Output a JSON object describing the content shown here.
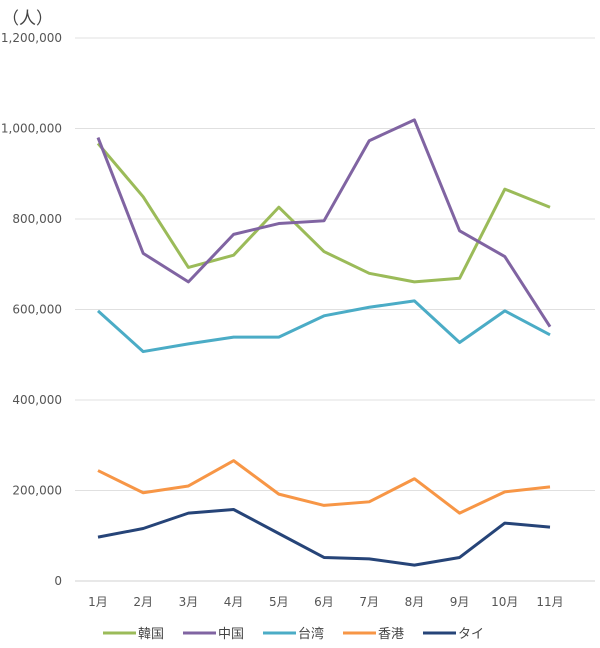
{
  "chart_data": {
    "type": "line",
    "unit_label": "（人）",
    "categories": [
      "1月",
      "2月",
      "3月",
      "4月",
      "5月",
      "6月",
      "7月",
      "8月",
      "9月",
      "10月",
      "11月"
    ],
    "ylim": [
      0,
      1200000
    ],
    "yticks": [
      0,
      200000,
      400000,
      600000,
      800000,
      1000000,
      1200000
    ],
    "ytick_labels": [
      "0",
      "200,000",
      "400,000",
      "600,000",
      "800,000",
      "1,000,000",
      "1,200,000"
    ],
    "grid": true,
    "legend_position": "bottom",
    "series": [
      {
        "name": "韓国",
        "color": "#9bbb59",
        "values": [
          967000,
          849000,
          693000,
          720000,
          826000,
          728000,
          680000,
          661000,
          669000,
          866000,
          826000
        ]
      },
      {
        "name": "中国",
        "color": "#8064a2",
        "values": [
          980000,
          724000,
          661000,
          766000,
          790000,
          796000,
          973000,
          1019000,
          774000,
          717000,
          562000
        ]
      },
      {
        "name": "台湾",
        "color": "#4bacc6",
        "values": [
          597000,
          507000,
          524000,
          539000,
          539000,
          586000,
          605000,
          619000,
          527000,
          597000,
          544000
        ]
      },
      {
        "name": "香港",
        "color": "#f79646",
        "values": [
          244000,
          195000,
          210000,
          266000,
          192000,
          167000,
          175000,
          226000,
          150000,
          197000,
          208000
        ]
      },
      {
        "name": "タイ",
        "color": "#264478",
        "values": [
          97000,
          116000,
          150000,
          158000,
          105000,
          52000,
          49000,
          35000,
          52000,
          128000,
          119000
        ]
      }
    ]
  }
}
